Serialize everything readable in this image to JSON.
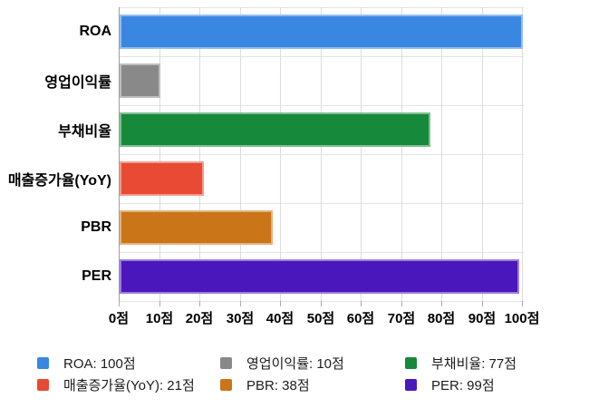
{
  "chart_data": {
    "type": "bar",
    "orientation": "horizontal",
    "title": "",
    "categories": [
      "ROA",
      "영업이익률",
      "부채비율",
      "매출증가율(YoY)",
      "PBR",
      "PER"
    ],
    "values": [
      100,
      10,
      77,
      21,
      38,
      99
    ],
    "bar_colors": [
      "#3a87e2",
      "#898989",
      "#17893a",
      "#e84a33",
      "#ca7517",
      "#4a17bd"
    ],
    "value_unit": "점",
    "xlim": [
      0,
      100
    ],
    "x_tick_values": [
      0,
      10,
      20,
      30,
      40,
      50,
      60,
      70,
      80,
      90,
      100
    ],
    "x_tick_labels": [
      "0점",
      "10점",
      "20점",
      "30점",
      "40점",
      "50점",
      "60점",
      "70점",
      "80점",
      "90점",
      "100점"
    ],
    "grid": true,
    "legend_position": "bottom",
    "legend_items": [
      {
        "label": "ROA: 100점",
        "color": "#3a87e2"
      },
      {
        "label": "영업이익률: 10점",
        "color": "#898989"
      },
      {
        "label": "부채비율: 77점",
        "color": "#17893a"
      },
      {
        "label": "매출증가율(YoY): 21점",
        "color": "#e84a33"
      },
      {
        "label": "PBR: 38점",
        "color": "#ca7517"
      },
      {
        "label": "PER: 99점",
        "color": "#4a17bd"
      }
    ]
  }
}
